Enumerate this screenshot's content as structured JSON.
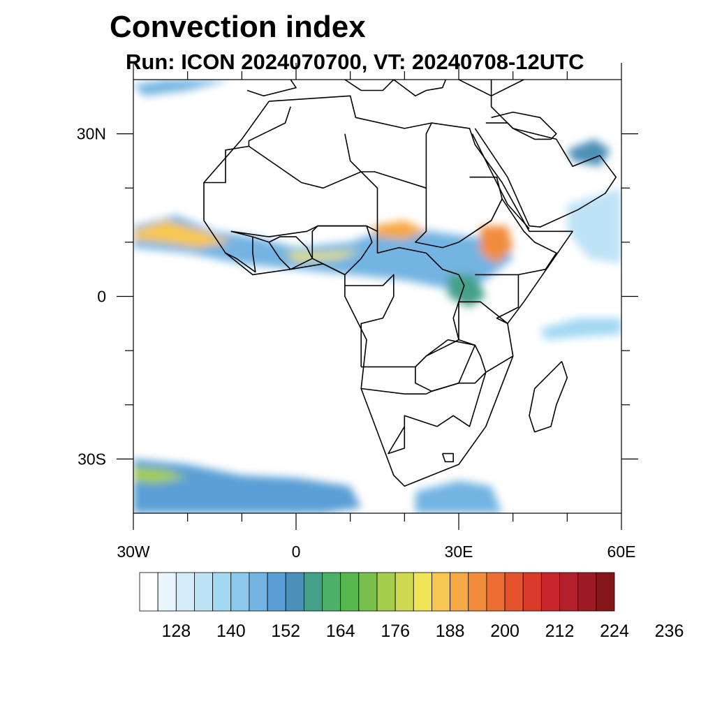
{
  "title": "Convection index",
  "subtitle": "Run: ICON 2024070700,  VT: 20240708-12UTC",
  "map": {
    "lon_range": [
      -30,
      60
    ],
    "lat_range": [
      -40,
      40
    ],
    "lon_ticks": [
      {
        "value": -30,
        "label": "30W"
      },
      {
        "value": 0,
        "label": "0"
      },
      {
        "value": 30,
        "label": "30E"
      },
      {
        "value": 60,
        "label": "60E"
      }
    ],
    "lat_ticks": [
      {
        "value": 30,
        "label": "30N"
      },
      {
        "value": 0,
        "label": "0"
      },
      {
        "value": -30,
        "label": "30S"
      }
    ],
    "minor_lon": [
      -20,
      -10,
      10,
      20,
      40,
      50
    ],
    "minor_lat": [
      20,
      10,
      -10,
      -20
    ]
  },
  "colorbar": {
    "colors": [
      "#ffffff",
      "#e9f5fc",
      "#d3ecf9",
      "#bde3f6",
      "#a3d8f3",
      "#8cc8ec",
      "#73b4e2",
      "#5a9fd6",
      "#4c8fb7",
      "#45a08a",
      "#4cb068",
      "#56b84f",
      "#79c04d",
      "#a4ce4b",
      "#cdda4f",
      "#f0e557",
      "#f7c650",
      "#f6a845",
      "#f18c3c",
      "#ec6e33",
      "#e5532e",
      "#db392c",
      "#c8252d",
      "#b3202b",
      "#9c1b24",
      "#861519"
    ],
    "labels": [
      "128",
      "140",
      "152",
      "164",
      "176",
      "188",
      "200",
      "212",
      "224",
      "236"
    ]
  },
  "fields": [
    {
      "name": "west-african-monsoon-band",
      "points": [
        [
          -30,
          13
        ],
        [
          -22,
          15
        ],
        [
          -15,
          12
        ],
        [
          -8,
          11
        ],
        [
          0,
          9
        ],
        [
          10,
          10
        ],
        [
          18,
          13
        ],
        [
          25,
          12
        ],
        [
          32,
          11
        ],
        [
          38,
          11
        ],
        [
          40,
          7
        ],
        [
          35,
          3
        ],
        [
          30,
          1
        ],
        [
          20,
          3
        ],
        [
          10,
          4
        ],
        [
          0,
          5
        ],
        [
          -10,
          6
        ],
        [
          -20,
          8
        ],
        [
          -30,
          9
        ]
      ],
      "level": 6
    },
    {
      "name": "west-coast-core",
      "points": [
        [
          -30,
          12
        ],
        [
          -24,
          14
        ],
        [
          -17,
          12
        ],
        [
          -12,
          10
        ],
        [
          -18,
          9
        ],
        [
          -25,
          10
        ],
        [
          -30,
          10.5
        ]
      ],
      "level": 16
    },
    {
      "name": "guinea-coast-core",
      "points": [
        [
          -2,
          8
        ],
        [
          5,
          8
        ],
        [
          12,
          8.5
        ],
        [
          8,
          7
        ],
        [
          0,
          6.5
        ]
      ],
      "level": 15
    },
    {
      "name": "central-sahel-core",
      "points": [
        [
          14,
          13
        ],
        [
          20,
          14
        ],
        [
          24,
          12
        ],
        [
          20,
          10.5
        ],
        [
          15,
          11
        ]
      ],
      "level": 17
    },
    {
      "name": "ethiopia-core",
      "points": [
        [
          34,
          13
        ],
        [
          39,
          13
        ],
        [
          40,
          9
        ],
        [
          37,
          6
        ],
        [
          34,
          8
        ]
      ],
      "level": 18
    },
    {
      "name": "lake-victoria-cluster",
      "points": [
        [
          28,
          4
        ],
        [
          33,
          4
        ],
        [
          35,
          0
        ],
        [
          32,
          -2
        ],
        [
          28,
          0
        ]
      ],
      "level": 9
    },
    {
      "name": "indian-ocean-streak",
      "points": [
        [
          45,
          -6
        ],
        [
          52,
          -4
        ],
        [
          60,
          -4
        ],
        [
          60,
          -7
        ],
        [
          52,
          -7.5
        ],
        [
          46,
          -8
        ]
      ],
      "level": 4
    },
    {
      "name": "southern-ocean-band-west",
      "points": [
        [
          -30,
          -30
        ],
        [
          -20,
          -31
        ],
        [
          -10,
          -33
        ],
        [
          0,
          -33.5
        ],
        [
          10,
          -35
        ],
        [
          12,
          -39
        ],
        [
          5,
          -40
        ],
        [
          -30,
          -40
        ]
      ],
      "level": 7
    },
    {
      "name": "southern-ocean-core-west",
      "points": [
        [
          -30,
          -31.5
        ],
        [
          -24,
          -32
        ],
        [
          -20,
          -33.5
        ],
        [
          -26,
          -34.5
        ],
        [
          -30,
          -34
        ]
      ],
      "level": 13
    },
    {
      "name": "southern-ocean-band-east",
      "points": [
        [
          22,
          -36
        ],
        [
          30,
          -34
        ],
        [
          36,
          -35
        ],
        [
          38,
          -40
        ],
        [
          22,
          -40
        ]
      ],
      "level": 6
    },
    {
      "name": "arabia-cluster",
      "points": [
        [
          50,
          27
        ],
        [
          55,
          29
        ],
        [
          58,
          27
        ],
        [
          56,
          24
        ],
        [
          51,
          25
        ]
      ],
      "level": 8
    },
    {
      "name": "north-atlantic-streak",
      "points": [
        [
          -30,
          39
        ],
        [
          -24,
          40
        ],
        [
          -12,
          40
        ],
        [
          -20,
          38
        ],
        [
          -28,
          37
        ]
      ],
      "level": 6
    },
    {
      "name": "arabian-sea-streak",
      "points": [
        [
          50,
          17
        ],
        [
          60,
          20
        ],
        [
          60,
          6
        ],
        [
          54,
          7
        ],
        [
          50,
          12
        ]
      ],
      "level": 3
    }
  ],
  "borders": [
    {
      "name": "africa-coastline",
      "points": [
        [
          -5,
          36
        ],
        [
          10,
          37
        ],
        [
          11,
          33
        ],
        [
          20,
          31
        ],
        [
          25,
          32
        ],
        [
          32,
          31
        ],
        [
          33,
          28
        ],
        [
          38,
          21
        ],
        [
          43,
          12
        ],
        [
          51,
          12
        ],
        [
          42,
          -1
        ],
        [
          39,
          -5
        ],
        [
          40,
          -11
        ],
        [
          35,
          -24
        ],
        [
          30,
          -31
        ],
        [
          20,
          -35
        ],
        [
          18,
          -33
        ],
        [
          12,
          -17
        ],
        [
          13,
          -8
        ],
        [
          9,
          0
        ],
        [
          9,
          4
        ],
        [
          5,
          6
        ],
        [
          -1,
          5
        ],
        [
          -8,
          4
        ],
        [
          -13,
          8
        ],
        [
          -17,
          14
        ],
        [
          -17,
          21
        ],
        [
          -10,
          29
        ],
        [
          -5,
          36
        ]
      ]
    },
    {
      "name": "arabian-peninsula-coastline",
      "points": [
        [
          33,
          31
        ],
        [
          35,
          28
        ],
        [
          39,
          22
        ],
        [
          43,
          13
        ],
        [
          45,
          12.8
        ],
        [
          52,
          16
        ],
        [
          57,
          19
        ],
        [
          59,
          22
        ],
        [
          56,
          26
        ],
        [
          51,
          24
        ],
        [
          48,
          29
        ],
        [
          40,
          31
        ],
        [
          36,
          35
        ],
        [
          36,
          40
        ]
      ]
    },
    {
      "name": "europe-coastline",
      "points": [
        [
          -9,
          38
        ],
        [
          -6,
          37
        ],
        [
          0,
          38.5
        ],
        [
          -1,
          40
        ],
        [
          3,
          41.5
        ],
        [
          9,
          40
        ],
        [
          12,
          38
        ],
        [
          16,
          38
        ],
        [
          18,
          40
        ],
        [
          22,
          37
        ],
        [
          24,
          38
        ],
        [
          27,
          38.5
        ],
        [
          28,
          41
        ],
        [
          36,
          37
        ],
        [
          42,
          40
        ]
      ]
    },
    {
      "name": "madagascar-coastline",
      "points": [
        [
          49,
          -12
        ],
        [
          50,
          -15
        ],
        [
          48,
          -20
        ],
        [
          47,
          -24
        ],
        [
          44,
          -25
        ],
        [
          43,
          -22
        ],
        [
          44,
          -17
        ],
        [
          47,
          -14
        ],
        [
          49,
          -12
        ]
      ]
    },
    {
      "name": "red-sea-divide",
      "points": [
        [
          32.5,
          30
        ],
        [
          36,
          23
        ],
        [
          39,
          17
        ],
        [
          43,
          12.5
        ]
      ]
    },
    {
      "name": "sahara-border-1",
      "points": [
        [
          -8.7,
          27.7
        ],
        [
          -4.8,
          25
        ],
        [
          1,
          21
        ],
        [
          5,
          20
        ],
        [
          12,
          23
        ],
        [
          14.5,
          23
        ],
        [
          24,
          20
        ],
        [
          24,
          30
        ],
        [
          25,
          32
        ]
      ]
    },
    {
      "name": "sahara-border-2",
      "points": [
        [
          9,
          30
        ],
        [
          10,
          25
        ],
        [
          12,
          23
        ],
        [
          15,
          20
        ],
        [
          15,
          12
        ],
        [
          13,
          13
        ],
        [
          4,
          13
        ],
        [
          2,
          12
        ],
        [
          -5,
          11
        ],
        [
          -12,
          12
        ]
      ]
    },
    {
      "name": "sahara-border-3",
      "points": [
        [
          -17,
          21
        ],
        [
          -13,
          21
        ],
        [
          -13,
          27
        ],
        [
          -8.7,
          27.7
        ],
        [
          -8.7,
          28.7
        ],
        [
          -2,
          32
        ],
        [
          -1,
          35
        ]
      ]
    },
    {
      "name": "sudan-border",
      "points": [
        [
          24,
          20
        ],
        [
          24,
          12
        ],
        [
          22,
          10
        ],
        [
          27,
          9
        ],
        [
          30,
          10
        ],
        [
          33,
          12
        ],
        [
          36,
          14
        ],
        [
          38,
          18
        ],
        [
          37,
          22
        ],
        [
          32,
          22
        ]
      ]
    },
    {
      "name": "central-africa-borders",
      "points": [
        [
          15,
          12
        ],
        [
          15,
          8
        ],
        [
          19,
          9
        ],
        [
          24,
          8
        ],
        [
          27,
          5
        ],
        [
          30,
          4
        ],
        [
          31,
          2
        ],
        [
          30,
          -1
        ],
        [
          29,
          -4
        ],
        [
          30,
          -8
        ],
        [
          24,
          -11
        ],
        [
          22,
          -13
        ],
        [
          12,
          -13
        ]
      ]
    },
    {
      "name": "congo-basin-borders",
      "points": [
        [
          9,
          2
        ],
        [
          14,
          2
        ],
        [
          16,
          2
        ],
        [
          18,
          4
        ],
        [
          18,
          0
        ],
        [
          16,
          -4
        ],
        [
          12,
          -5
        ],
        [
          12,
          -13
        ]
      ]
    },
    {
      "name": "east-africa-borders",
      "points": [
        [
          33,
          4
        ],
        [
          35,
          4
        ],
        [
          41,
          4
        ],
        [
          41,
          -2
        ],
        [
          37,
          -4
        ],
        [
          39,
          -5
        ],
        [
          34,
          -1
        ],
        [
          30,
          -1
        ],
        [
          30,
          -8
        ],
        [
          33,
          -9
        ],
        [
          34,
          -11
        ],
        [
          35,
          -14
        ],
        [
          40,
          -11
        ]
      ]
    },
    {
      "name": "horn-africa-borders",
      "points": [
        [
          33,
          12
        ],
        [
          36,
          14
        ],
        [
          38,
          18
        ],
        [
          42,
          12
        ],
        [
          44,
          10
        ],
        [
          48,
          8
        ],
        [
          46,
          5
        ],
        [
          41,
          4
        ]
      ]
    },
    {
      "name": "southern-africa-borders",
      "points": [
        [
          12,
          -17
        ],
        [
          20,
          -18
        ],
        [
          24,
          -18
        ],
        [
          25,
          -17.5
        ],
        [
          30,
          -16
        ],
        [
          33,
          -16
        ],
        [
          35,
          -14
        ],
        [
          32,
          -24
        ],
        [
          29,
          -22
        ],
        [
          26,
          -24
        ],
        [
          20,
          -22
        ],
        [
          20,
          -28
        ],
        [
          17,
          -29
        ],
        [
          20,
          -24
        ]
      ]
    },
    {
      "name": "zambia-zimbabwe-border",
      "points": [
        [
          22,
          -13
        ],
        [
          24,
          -11
        ],
        [
          28,
          -8
        ],
        [
          33,
          -9
        ],
        [
          30,
          -16
        ],
        [
          25,
          -17.5
        ],
        [
          22,
          -16
        ],
        [
          22,
          -13
        ]
      ]
    },
    {
      "name": "west-africa-borders",
      "points": [
        [
          -12,
          12
        ],
        [
          -8,
          11
        ],
        [
          -5,
          10
        ],
        [
          -3,
          11
        ],
        [
          0,
          11
        ],
        [
          2,
          9
        ],
        [
          3,
          7
        ],
        [
          -1,
          5
        ],
        [
          -3,
          7
        ],
        [
          -5,
          10
        ]
      ]
    },
    {
      "name": "west-africa-borders-2",
      "points": [
        [
          -8,
          11
        ],
        [
          -8,
          8
        ],
        [
          -7.5,
          4.5
        ],
        [
          -11,
          7
        ],
        [
          -13,
          8
        ]
      ]
    },
    {
      "name": "nigeria-border",
      "points": [
        [
          3,
          7
        ],
        [
          3,
          12
        ],
        [
          4,
          13
        ],
        [
          9,
          13
        ],
        [
          13,
          13
        ],
        [
          14,
          10
        ],
        [
          12,
          7
        ],
        [
          9,
          4
        ],
        [
          5,
          6
        ],
        [
          3,
          7
        ]
      ]
    },
    {
      "name": "lesotho-border",
      "points": [
        [
          27,
          -29
        ],
        [
          29,
          -29
        ],
        [
          29,
          -30.5
        ],
        [
          27.5,
          -30.5
        ],
        [
          27,
          -29
        ]
      ]
    },
    {
      "name": "middle-east-borders",
      "points": [
        [
          36,
          33
        ],
        [
          40,
          34
        ],
        [
          45,
          33
        ],
        [
          48,
          30
        ],
        [
          47,
          29
        ],
        [
          44,
          29
        ],
        [
          40,
          31
        ],
        [
          39,
          32
        ],
        [
          35,
          32
        ]
      ]
    }
  ]
}
